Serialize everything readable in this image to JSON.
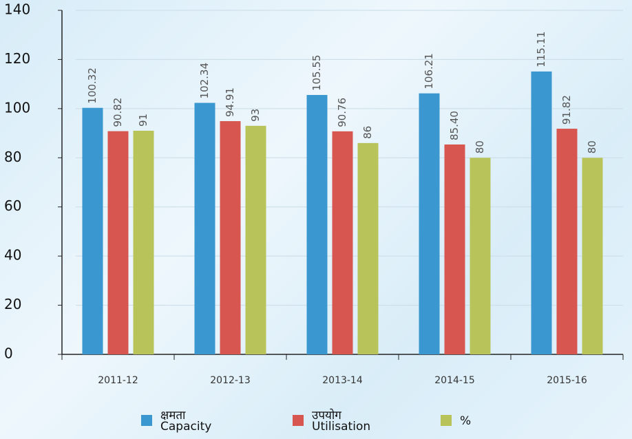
{
  "chart_data": {
    "type": "bar",
    "categories": [
      "2011-12",
      "2012-13",
      "2013-14",
      "2014-15",
      "2015-16"
    ],
    "series": [
      {
        "name": "क्षमता\nCapacity",
        "color": "#3a97d0",
        "values": [
          100.32,
          102.34,
          105.55,
          106.21,
          115.11
        ],
        "value_labels": [
          "100.32",
          "102.34",
          "105.55",
          "106.21",
          "115.11"
        ]
      },
      {
        "name": "उपयोग\nUtilisation",
        "color": "#d85650",
        "values": [
          90.82,
          94.91,
          90.76,
          85.4,
          91.82
        ],
        "value_labels": [
          "90.82",
          "94.91",
          "90.76",
          "85.40",
          "91.82"
        ]
      },
      {
        "name": "%",
        "color": "#b8c45a",
        "values": [
          91,
          93,
          86,
          80,
          80
        ],
        "value_labels": [
          "91",
          "93",
          "86",
          "80",
          "80"
        ]
      }
    ],
    "ylim": [
      0,
      140
    ],
    "yticks": [
      0,
      20,
      40,
      60,
      80,
      100,
      120,
      140
    ],
    "grid": true,
    "legend": "bottom"
  }
}
